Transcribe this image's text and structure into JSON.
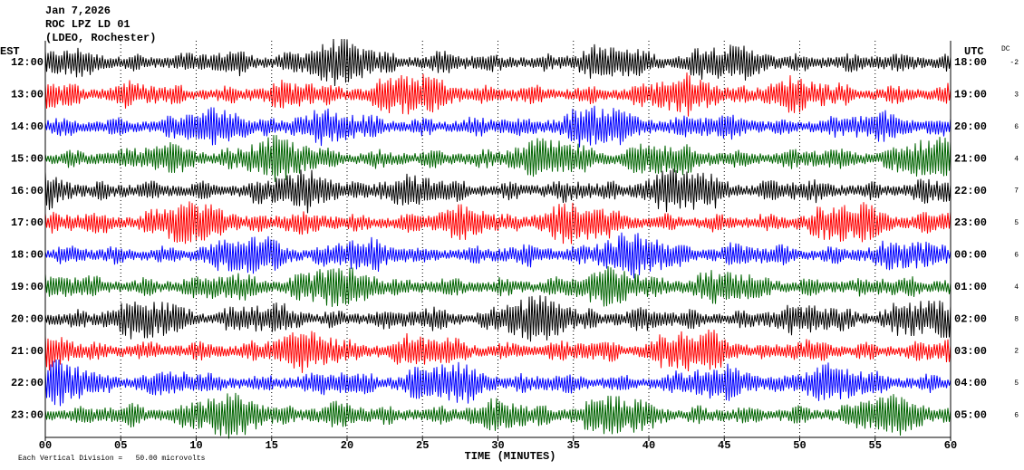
{
  "chart_data": {
    "type": "helicorder",
    "header": [
      "Jan 7,2026",
      "ROC LPZ LD 01",
      "(LDEO, Rochester)"
    ],
    "left_title": "EST",
    "right_title": "UTC",
    "dc_title": "DC",
    "left_labels": [
      "12:00",
      "13:00",
      "14:00",
      "15:00",
      "16:00",
      "17:00",
      "18:00",
      "19:00",
      "20:00",
      "21:00",
      "22:00",
      "23:00"
    ],
    "right_labels": [
      "18:00",
      "19:00",
      "20:00",
      "21:00",
      "22:00",
      "23:00",
      "00:00",
      "01:00",
      "02:00",
      "03:00",
      "04:00",
      "05:00"
    ],
    "dc_values": [
      -2,
      3,
      6,
      4,
      7,
      5,
      6,
      4,
      8,
      2,
      5,
      6
    ],
    "colors": [
      "#000000",
      "#ff0000",
      "#0000ff",
      "#006400"
    ],
    "xlabel": "TIME (MINUTES)",
    "footnote": "Each Vertical Division =   50.00 microvolts",
    "xlim": [
      0,
      60
    ],
    "xticks": [
      {
        "value": 0,
        "label": "00"
      },
      {
        "value": 5,
        "label": "05"
      },
      10,
      15,
      20,
      25,
      30,
      35,
      40,
      45,
      50,
      55,
      60
    ]
  }
}
